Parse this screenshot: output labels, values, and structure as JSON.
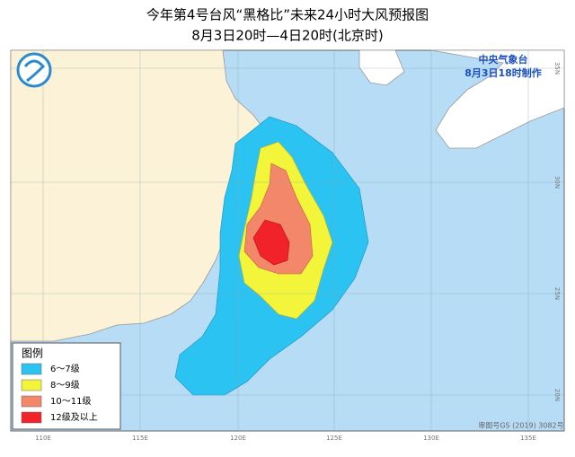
{
  "title": "今年第4号台风“黑格比”未来24小时大风预报图",
  "subtitle": "8月3日20时—4日20时(北京时)",
  "issuer": {
    "name": "中央气象台",
    "time": "8月3日18时制作"
  },
  "legend": {
    "title": "图例",
    "items": [
      {
        "label": "6～7级",
        "color": "#2bc3f2"
      },
      {
        "label": "8～9级",
        "color": "#f2f53a"
      },
      {
        "label": "10～11级",
        "color": "#f2876a"
      },
      {
        "label": "12级及以上",
        "color": "#f2222a"
      }
    ]
  },
  "longitude_labels": [
    "110E",
    "115E",
    "120E",
    "125E",
    "130E",
    "135E"
  ],
  "latitude_labels": [
    "35N",
    "30N",
    "25N",
    "20N"
  ],
  "approval": "审图号GS (2019) 3082号"
}
